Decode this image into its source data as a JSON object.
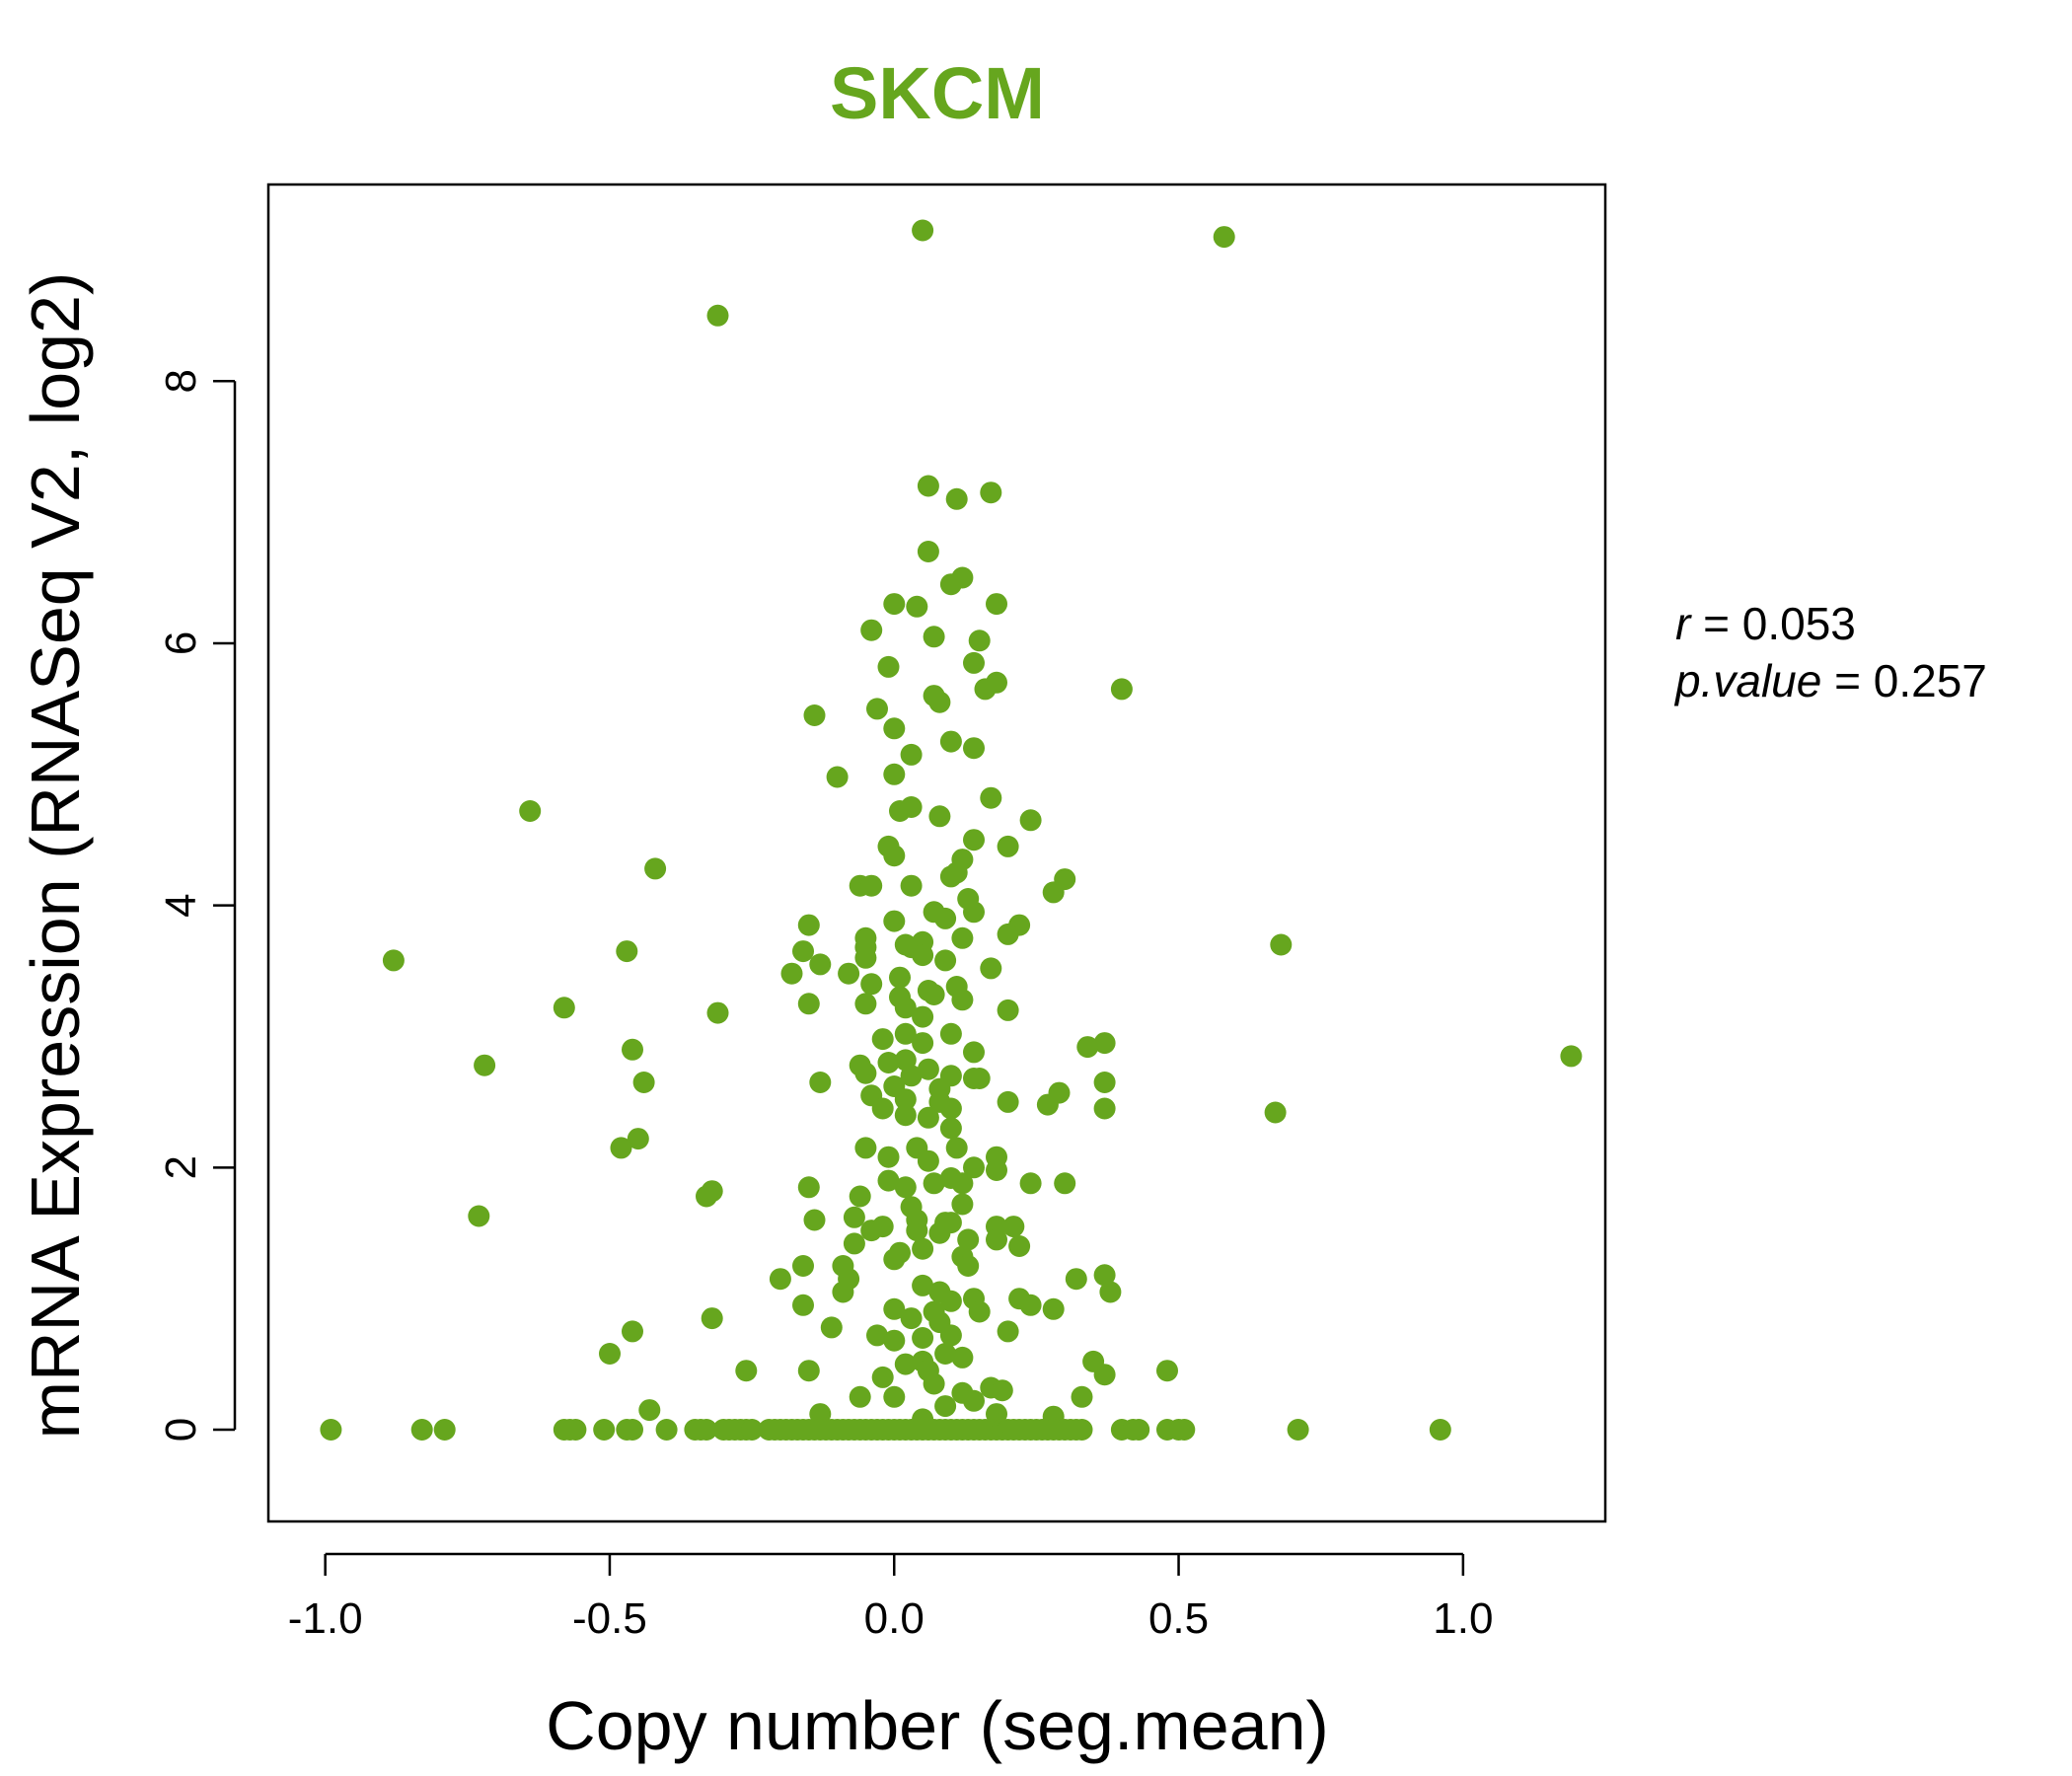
{
  "chart_data": {
    "type": "scatter",
    "title": "SKCM",
    "xlabel": "Copy number (seg.mean)",
    "ylabel": "mRNA Expression (RNASeq V2, log2)",
    "xlim": [
      -1.1,
      1.25
    ],
    "ylim": [
      -0.7,
      9.5
    ],
    "x_ticks": [
      -1.0,
      -0.5,
      0.0,
      0.5,
      1.0
    ],
    "x_tick_labels": [
      "-1.0",
      "-0.5",
      "0.0",
      "0.5",
      "1.0"
    ],
    "y_ticks": [
      0,
      2,
      4,
      6,
      8
    ],
    "y_tick_labels": [
      "0",
      "2",
      "4",
      "6",
      "8"
    ],
    "grid": false,
    "color": "#66A61E",
    "stats": {
      "r_label": "r",
      "r_value": "0.053",
      "p_label": "p.value",
      "p_value": "0.257"
    },
    "points": [
      [
        0.05,
        9.15
      ],
      [
        0.58,
        9.1
      ],
      [
        -0.31,
        8.5
      ],
      [
        0.06,
        7.2
      ],
      [
        0.17,
        7.15
      ],
      [
        0.11,
        7.1
      ],
      [
        0.06,
        6.7
      ],
      [
        0.12,
        6.5
      ],
      [
        0.1,
        6.45
      ],
      [
        0.18,
        6.3
      ],
      [
        0.0,
        6.3
      ],
      [
        0.04,
        6.28
      ],
      [
        -0.04,
        6.1
      ],
      [
        0.07,
        6.05
      ],
      [
        0.15,
        6.02
      ],
      [
        0.14,
        5.85
      ],
      [
        -0.01,
        5.82
      ],
      [
        0.18,
        5.7
      ],
      [
        0.16,
        5.65
      ],
      [
        0.4,
        5.65
      ],
      [
        0.07,
        5.6
      ],
      [
        0.08,
        5.55
      ],
      [
        -0.03,
        5.5
      ],
      [
        -0.14,
        5.45
      ],
      [
        0.0,
        5.35
      ],
      [
        0.1,
        5.25
      ],
      [
        0.14,
        5.2
      ],
      [
        0.03,
        5.15
      ],
      [
        0.0,
        5.0
      ],
      [
        -0.1,
        4.98
      ],
      [
        0.17,
        4.82
      ],
      [
        0.03,
        4.75
      ],
      [
        0.01,
        4.72
      ],
      [
        -0.64,
        4.72
      ],
      [
        0.08,
        4.68
      ],
      [
        0.24,
        4.65
      ],
      [
        0.14,
        4.5
      ],
      [
        -0.01,
        4.45
      ],
      [
        0.2,
        4.45
      ],
      [
        0.0,
        4.38
      ],
      [
        0.12,
        4.35
      ],
      [
        0.11,
        4.25
      ],
      [
        -0.42,
        4.28
      ],
      [
        0.1,
        4.22
      ],
      [
        0.3,
        4.2
      ],
      [
        -0.06,
        4.15
      ],
      [
        -0.04,
        4.15
      ],
      [
        0.03,
        4.15
      ],
      [
        0.28,
        4.1
      ],
      [
        0.13,
        4.05
      ],
      [
        0.14,
        3.95
      ],
      [
        0.07,
        3.95
      ],
      [
        0.09,
        3.9
      ],
      [
        0.0,
        3.88
      ],
      [
        0.22,
        3.85
      ],
      [
        -0.15,
        3.85
      ],
      [
        0.2,
        3.78
      ],
      [
        0.12,
        3.75
      ],
      [
        -0.05,
        3.75
      ],
      [
        0.05,
        3.72
      ],
      [
        0.02,
        3.7
      ],
      [
        0.68,
        3.7
      ],
      [
        -0.05,
        3.68
      ],
      [
        0.03,
        3.68
      ],
      [
        -0.47,
        3.65
      ],
      [
        -0.16,
        3.65
      ],
      [
        0.05,
        3.62
      ],
      [
        -0.05,
        3.6
      ],
      [
        -0.88,
        3.58
      ],
      [
        0.09,
        3.58
      ],
      [
        -0.13,
        3.55
      ],
      [
        0.17,
        3.52
      ],
      [
        -0.18,
        3.48
      ],
      [
        -0.08,
        3.48
      ],
      [
        0.01,
        3.45
      ],
      [
        -0.04,
        3.4
      ],
      [
        0.11,
        3.38
      ],
      [
        0.06,
        3.35
      ],
      [
        0.07,
        3.32
      ],
      [
        0.01,
        3.3
      ],
      [
        0.12,
        3.28
      ],
      [
        -0.15,
        3.25
      ],
      [
        -0.05,
        3.25
      ],
      [
        0.02,
        3.22
      ],
      [
        -0.58,
        3.22
      ],
      [
        0.2,
        3.2
      ],
      [
        0.05,
        3.15
      ],
      [
        -0.31,
        3.18
      ],
      [
        0.1,
        3.02
      ],
      [
        0.02,
        3.02
      ],
      [
        -0.02,
        2.98
      ],
      [
        0.05,
        2.95
      ],
      [
        0.37,
        2.95
      ],
      [
        0.34,
        2.92
      ],
      [
        -0.46,
        2.9
      ],
      [
        0.14,
        2.88
      ],
      [
        1.19,
        2.85
      ],
      [
        0.02,
        2.82
      ],
      [
        -0.01,
        2.8
      ],
      [
        -0.06,
        2.78
      ],
      [
        -0.72,
        2.78
      ],
      [
        0.06,
        2.75
      ],
      [
        -0.05,
        2.72
      ],
      [
        0.03,
        2.7
      ],
      [
        0.1,
        2.7
      ],
      [
        0.14,
        2.68
      ],
      [
        0.15,
        2.68
      ],
      [
        -0.44,
        2.65
      ],
      [
        0.37,
        2.65
      ],
      [
        -0.13,
        2.65
      ],
      [
        0.0,
        2.62
      ],
      [
        0.08,
        2.6
      ],
      [
        0.29,
        2.57
      ],
      [
        -0.04,
        2.55
      ],
      [
        0.02,
        2.52
      ],
      [
        0.08,
        2.5
      ],
      [
        0.2,
        2.5
      ],
      [
        0.27,
        2.48
      ],
      [
        -0.02,
        2.45
      ],
      [
        0.1,
        2.45
      ],
      [
        0.37,
        2.45
      ],
      [
        0.67,
        2.42
      ],
      [
        0.02,
        2.4
      ],
      [
        0.06,
        2.38
      ],
      [
        0.1,
        2.3
      ],
      [
        -0.45,
        2.22
      ],
      [
        -0.48,
        2.15
      ],
      [
        0.04,
        2.15
      ],
      [
        0.11,
        2.15
      ],
      [
        -0.05,
        2.15
      ],
      [
        0.18,
        2.08
      ],
      [
        -0.01,
        2.08
      ],
      [
        0.06,
        2.05
      ],
      [
        0.14,
        2.0
      ],
      [
        0.18,
        1.98
      ],
      [
        0.1,
        1.92
      ],
      [
        -0.01,
        1.9
      ],
      [
        0.3,
        1.88
      ],
      [
        0.12,
        1.88
      ],
      [
        0.24,
        1.88
      ],
      [
        0.07,
        1.88
      ],
      [
        -0.15,
        1.85
      ],
      [
        0.02,
        1.85
      ],
      [
        -0.32,
        1.82
      ],
      [
        -0.33,
        1.78
      ],
      [
        -0.06,
        1.78
      ],
      [
        0.12,
        1.72
      ],
      [
        0.03,
        1.7
      ],
      [
        -0.73,
        1.63
      ],
      [
        -0.14,
        1.6
      ],
      [
        -0.07,
        1.62
      ],
      [
        0.04,
        1.6
      ],
      [
        0.09,
        1.58
      ],
      [
        0.1,
        1.58
      ],
      [
        0.18,
        1.55
      ],
      [
        0.21,
        1.55
      ],
      [
        -0.02,
        1.55
      ],
      [
        0.04,
        1.52
      ],
      [
        -0.04,
        1.52
      ],
      [
        0.08,
        1.5
      ],
      [
        0.13,
        1.45
      ],
      [
        0.18,
        1.45
      ],
      [
        0.22,
        1.4
      ],
      [
        -0.07,
        1.42
      ],
      [
        0.05,
        1.38
      ],
      [
        0.01,
        1.35
      ],
      [
        0.12,
        1.32
      ],
      [
        0.0,
        1.3
      ],
      [
        -0.09,
        1.25
      ],
      [
        -0.16,
        1.25
      ],
      [
        0.13,
        1.25
      ],
      [
        0.37,
        1.18
      ],
      [
        -0.08,
        1.15
      ],
      [
        0.32,
        1.15
      ],
      [
        -0.2,
        1.15
      ],
      [
        0.05,
        1.1
      ],
      [
        0.08,
        1.05
      ],
      [
        -0.09,
        1.05
      ],
      [
        0.38,
        1.05
      ],
      [
        0.14,
        1.0
      ],
      [
        0.22,
        1.0
      ],
      [
        0.1,
        0.98
      ],
      [
        -0.16,
        0.95
      ],
      [
        0.24,
        0.95
      ],
      [
        0.0,
        0.92
      ],
      [
        0.07,
        0.9
      ],
      [
        0.15,
        0.9
      ],
      [
        0.28,
        0.92
      ],
      [
        -0.32,
        0.85
      ],
      [
        0.03,
        0.85
      ],
      [
        0.08,
        0.82
      ],
      [
        -0.11,
        0.78
      ],
      [
        0.2,
        0.75
      ],
      [
        -0.46,
        0.75
      ],
      [
        0.1,
        0.72
      ],
      [
        -0.03,
        0.72
      ],
      [
        0.05,
        0.7
      ],
      [
        0.0,
        0.68
      ],
      [
        -0.5,
        0.58
      ],
      [
        0.09,
        0.58
      ],
      [
        0.12,
        0.55
      ],
      [
        0.05,
        0.52
      ],
      [
        0.35,
        0.52
      ],
      [
        0.02,
        0.5
      ],
      [
        -0.26,
        0.45
      ],
      [
        -0.15,
        0.45
      ],
      [
        0.48,
        0.45
      ],
      [
        0.06,
        0.45
      ],
      [
        0.37,
        0.42
      ],
      [
        -0.02,
        0.4
      ],
      [
        0.07,
        0.35
      ],
      [
        0.17,
        0.32
      ],
      [
        0.19,
        0.3
      ],
      [
        0.12,
        0.28
      ],
      [
        -0.06,
        0.25
      ],
      [
        0.33,
        0.25
      ],
      [
        0.0,
        0.25
      ],
      [
        0.14,
        0.22
      ],
      [
        0.09,
        0.18
      ],
      [
        -0.43,
        0.15
      ],
      [
        -0.13,
        0.12
      ],
      [
        0.18,
        0.12
      ],
      [
        0.28,
        0.1
      ],
      [
        0.05,
        0.08
      ],
      [
        -0.99,
        0
      ],
      [
        -0.83,
        0
      ],
      [
        -0.79,
        0
      ],
      [
        -0.58,
        0
      ],
      [
        -0.57,
        0
      ],
      [
        -0.56,
        0
      ],
      [
        -0.51,
        0
      ],
      [
        -0.47,
        0
      ],
      [
        -0.46,
        0
      ],
      [
        -0.4,
        0
      ],
      [
        -0.35,
        0
      ],
      [
        -0.34,
        0
      ],
      [
        -0.33,
        0
      ],
      [
        -0.3,
        0
      ],
      [
        -0.29,
        0
      ],
      [
        -0.28,
        0
      ],
      [
        -0.27,
        0
      ],
      [
        -0.26,
        0
      ],
      [
        -0.25,
        0
      ],
      [
        -0.22,
        0
      ],
      [
        -0.21,
        0
      ],
      [
        -0.2,
        0
      ],
      [
        -0.19,
        0
      ],
      [
        -0.18,
        0
      ],
      [
        -0.17,
        0
      ],
      [
        -0.16,
        0
      ],
      [
        -0.15,
        0
      ],
      [
        -0.14,
        0
      ],
      [
        -0.13,
        0
      ],
      [
        -0.12,
        0
      ],
      [
        -0.11,
        0
      ],
      [
        -0.1,
        0
      ],
      [
        -0.09,
        0
      ],
      [
        -0.08,
        0
      ],
      [
        -0.07,
        0
      ],
      [
        -0.06,
        0
      ],
      [
        -0.05,
        0
      ],
      [
        -0.04,
        0
      ],
      [
        -0.03,
        0
      ],
      [
        -0.02,
        0
      ],
      [
        -0.01,
        0
      ],
      [
        0.0,
        0
      ],
      [
        0.01,
        0
      ],
      [
        0.02,
        0
      ],
      [
        0.03,
        0
      ],
      [
        0.04,
        0
      ],
      [
        0.05,
        0
      ],
      [
        0.06,
        0
      ],
      [
        0.07,
        0
      ],
      [
        0.08,
        0
      ],
      [
        0.09,
        0
      ],
      [
        0.1,
        0
      ],
      [
        0.11,
        0
      ],
      [
        0.12,
        0
      ],
      [
        0.13,
        0
      ],
      [
        0.14,
        0
      ],
      [
        0.15,
        0
      ],
      [
        0.16,
        0
      ],
      [
        0.17,
        0
      ],
      [
        0.18,
        0
      ],
      [
        0.19,
        0
      ],
      [
        0.2,
        0
      ],
      [
        0.21,
        0
      ],
      [
        0.22,
        0
      ],
      [
        0.23,
        0
      ],
      [
        0.24,
        0
      ],
      [
        0.25,
        0
      ],
      [
        0.26,
        0
      ],
      [
        0.27,
        0
      ],
      [
        0.28,
        0
      ],
      [
        0.29,
        0
      ],
      [
        0.3,
        0
      ],
      [
        0.31,
        0
      ],
      [
        0.32,
        0
      ],
      [
        0.33,
        0
      ],
      [
        0.4,
        0
      ],
      [
        0.42,
        0
      ],
      [
        0.43,
        0
      ],
      [
        0.48,
        0
      ],
      [
        0.5,
        0
      ],
      [
        0.51,
        0
      ],
      [
        0.71,
        0
      ],
      [
        0.96,
        0
      ]
    ]
  }
}
